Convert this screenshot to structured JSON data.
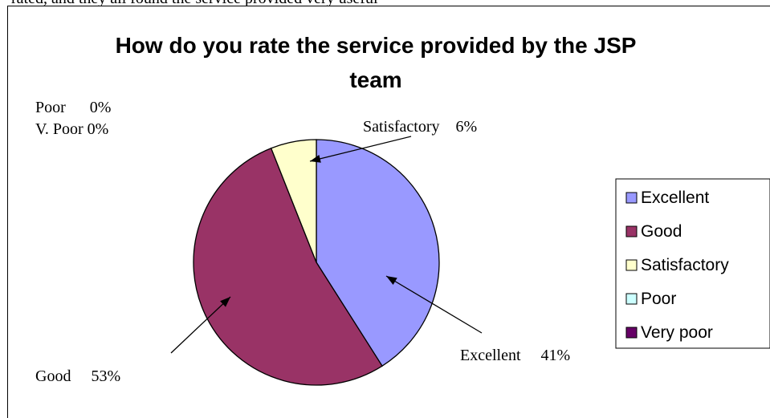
{
  "top_text": "rated, and they all found the service provided very useful",
  "chart_data": {
    "type": "pie",
    "title_line1": "How do you rate the service provided by the JSP",
    "title_line2": "team",
    "categories": [
      "Excellent",
      "Good",
      "Satisfactory",
      "Poor",
      "Very poor"
    ],
    "values": [
      41,
      53,
      6,
      0,
      0
    ],
    "colors": [
      "#9999FF",
      "#993366",
      "#FFFFCC",
      "#CCFFFF",
      "#660066"
    ],
    "legend_position": "right",
    "callouts": {
      "poor": "Poor      0%",
      "vpoor": "V. Poor 0%",
      "satisfactory": "Satisfactory    6%",
      "excellent": "Excellent     41%",
      "good": "Good     53%"
    }
  }
}
